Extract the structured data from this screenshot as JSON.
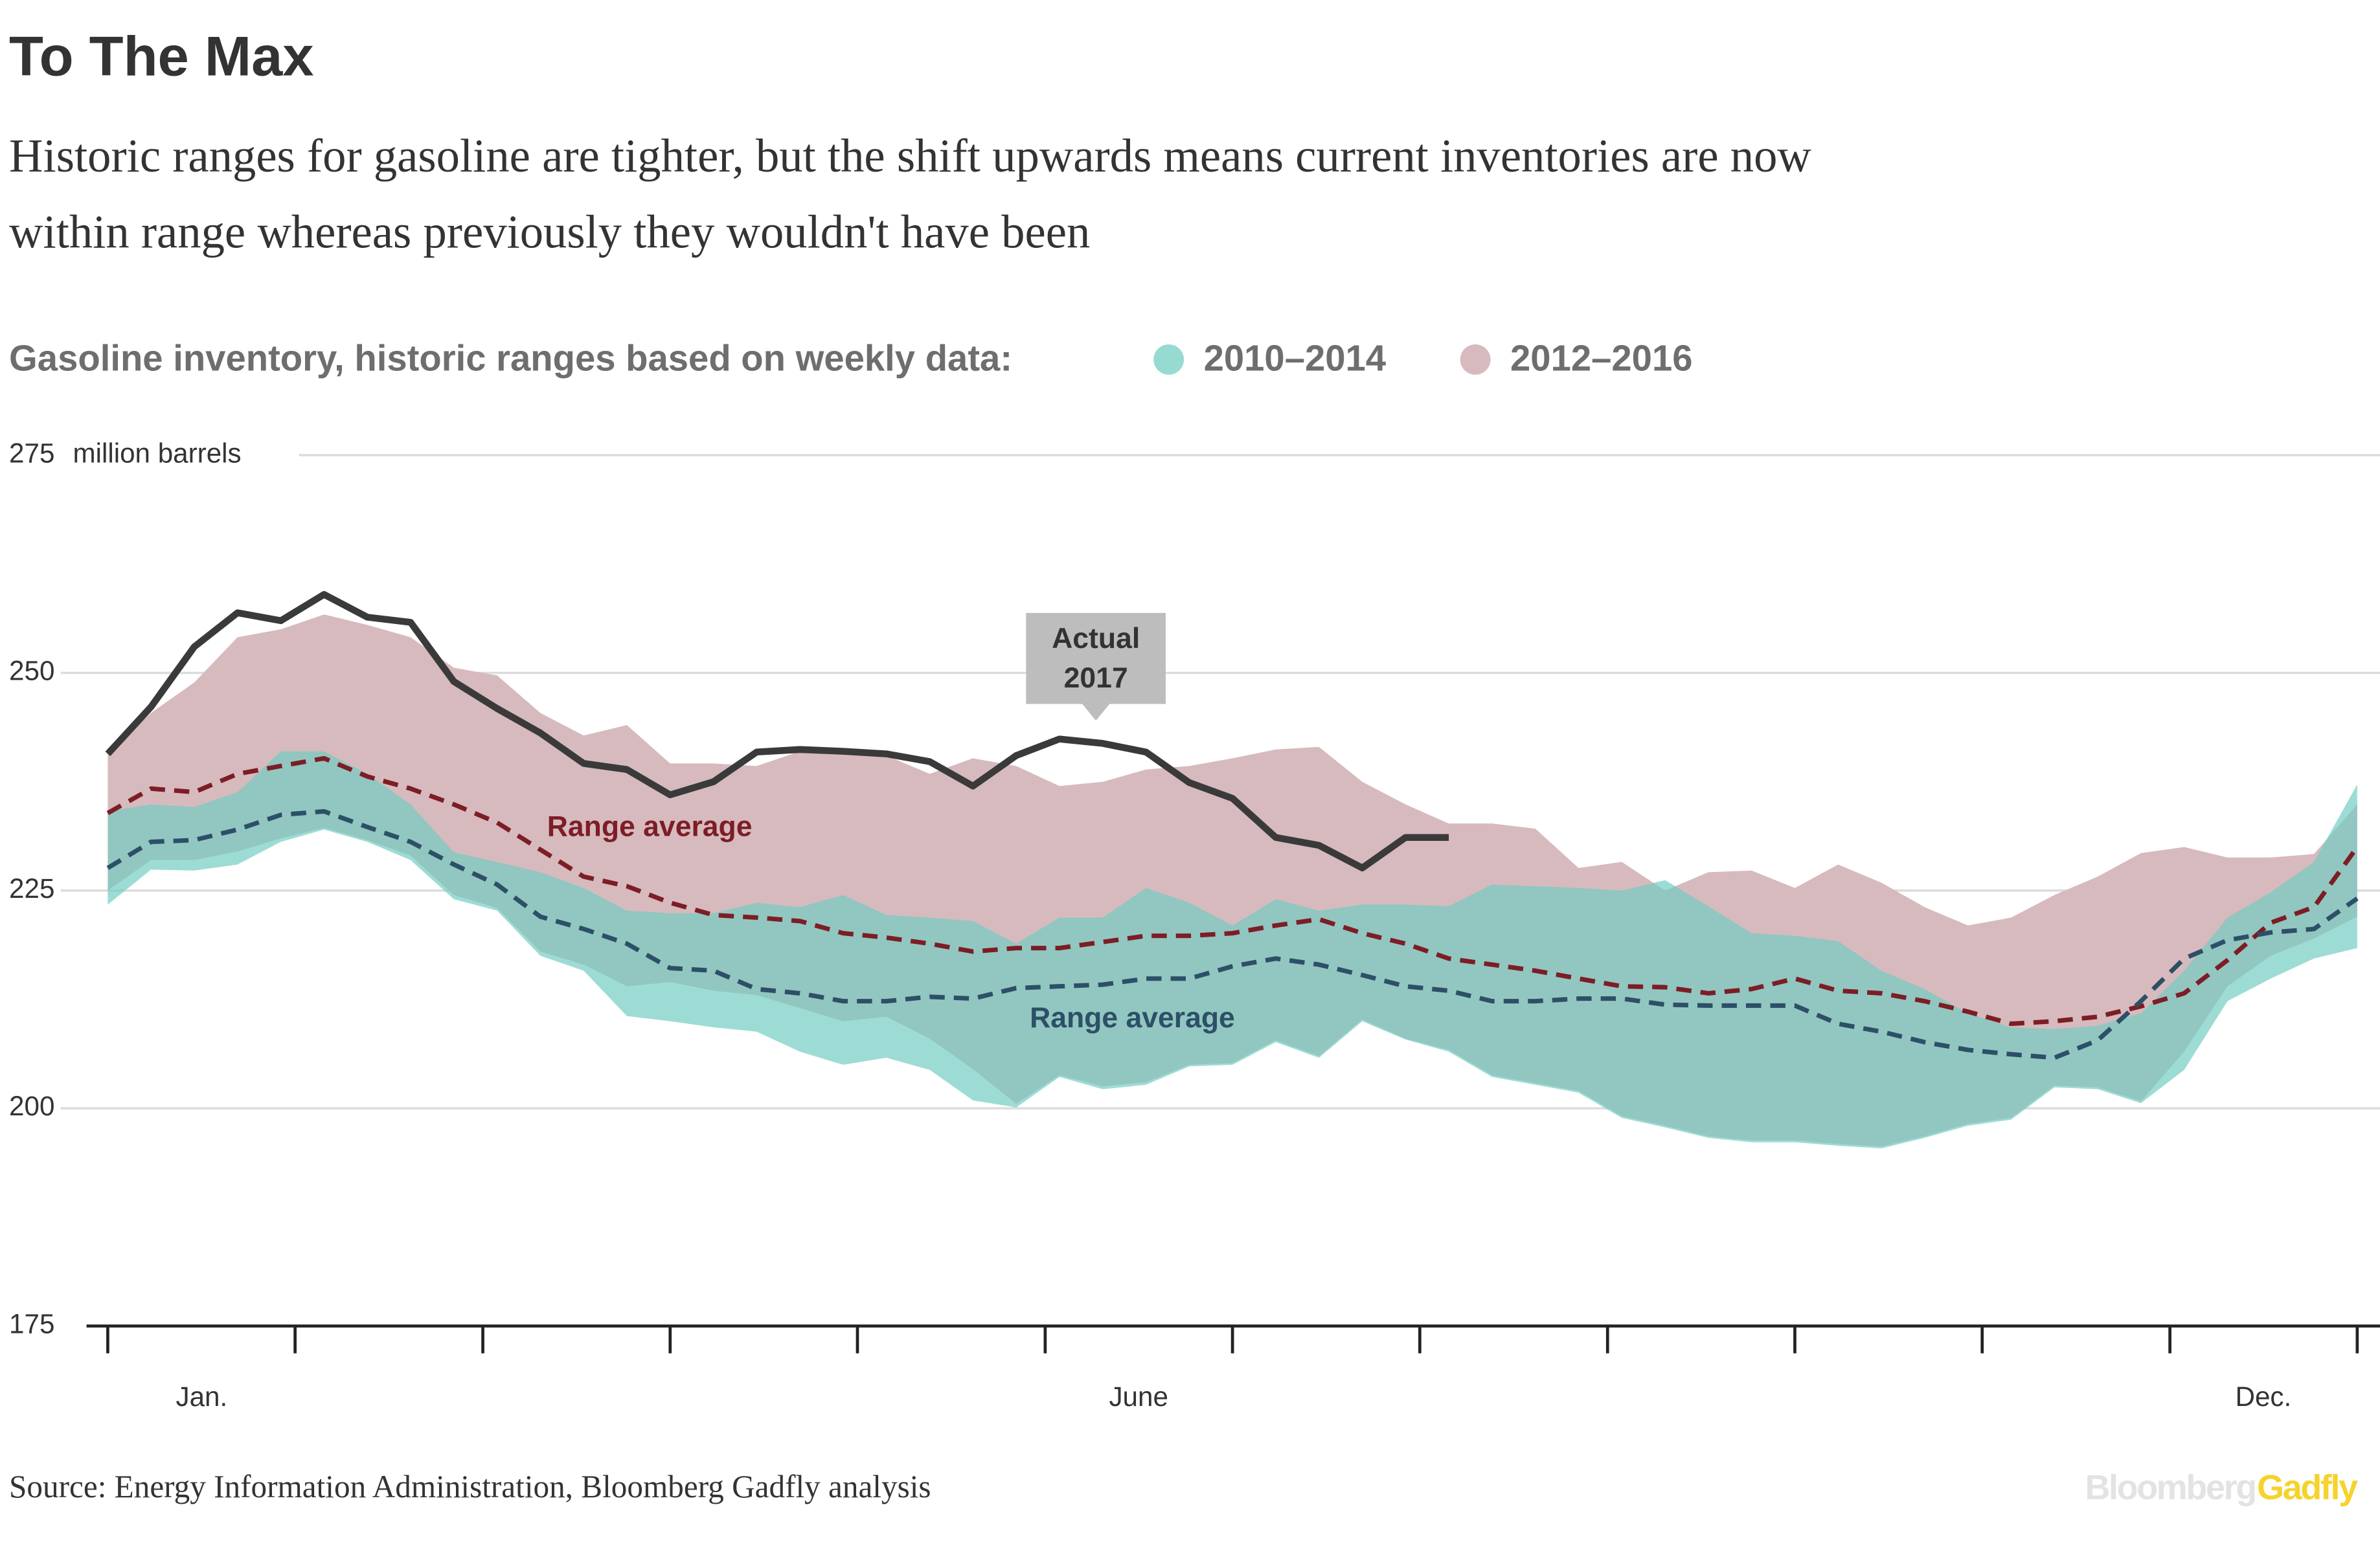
{
  "chart_data": {
    "type": "range-line",
    "title": "To The Max",
    "subtitle": [
      "Historic ranges for gasoline are tighter, but the shift upwards means current inventories are now",
      "within range whereas previously they wouldn't have been"
    ],
    "legend_title": "Gasoline inventory, historic ranges based on weekly data:",
    "y_unit": "million barrels",
    "source": "Source: Energy Information Administration, Bloomberg Gadfly analysis",
    "logo": [
      "Bloomberg",
      "Gadfly"
    ],
    "x": [
      0,
      1,
      2,
      3,
      4,
      5,
      6,
      7,
      8,
      9,
      10,
      11,
      12,
      13,
      14,
      15,
      16,
      17,
      18,
      19,
      20,
      21,
      22,
      23,
      24,
      25,
      26,
      27,
      28,
      29,
      30,
      31,
      32,
      33,
      34,
      35,
      36,
      37,
      38,
      39,
      40,
      41,
      42,
      43,
      44,
      45,
      46,
      47,
      48,
      49,
      50,
      51,
      52
    ],
    "xlim": [
      0,
      52
    ],
    "xticks": [
      0,
      4.33,
      8.67,
      13,
      17.33,
      21.67,
      26,
      30.33,
      34.67,
      39,
      43.33,
      47.67,
      52
    ],
    "xlabels": [
      {
        "value": 2.17,
        "label": "Jan."
      },
      {
        "value": 23.83,
        "label": "June"
      },
      {
        "value": 49.83,
        "label": "Dec."
      }
    ],
    "ylim": [
      175,
      275
    ],
    "yticks": [
      175,
      200,
      225,
      250,
      275
    ],
    "grid": true,
    "bands": [
      {
        "name": "2012–2016",
        "color": "#d7babd",
        "upper": [
          240.7,
          245.4,
          248.9,
          254.1,
          255.0,
          256.7,
          255.5,
          254.1,
          250.6,
          249.7,
          245.4,
          242.8,
          244.0,
          239.6,
          239.6,
          239.3,
          241.0,
          240.7,
          240.5,
          238.4,
          240.2,
          239.3,
          237.0,
          237.5,
          238.9,
          239.3,
          240.2,
          241.2,
          241.5,
          237.5,
          234.9,
          232.7,
          232.7,
          232.1,
          227.6,
          228.3,
          225.0,
          227.1,
          227.3,
          225.3,
          228.0,
          225.9,
          223.1,
          221.0,
          221.9,
          224.5,
          226.6,
          229.3,
          230.0,
          228.8,
          228.8,
          229.2,
          234.9
        ],
        "lower": [
          225.0,
          228.5,
          228.5,
          229.5,
          231.0,
          232.2,
          230.8,
          229.0,
          224.5,
          223.0,
          218.0,
          216.5,
          214.0,
          214.5,
          213.5,
          213.0,
          211.5,
          210.0,
          210.5,
          208.0,
          204.5,
          200.5,
          203.8,
          202.5,
          203.0,
          205.0,
          205.2,
          207.8,
          206.0,
          210.2,
          208.0,
          206.7,
          203.8,
          202.9,
          202.0,
          199.1,
          198.0,
          196.8,
          196.3,
          196.3,
          195.9,
          195.6,
          196.8,
          198.2,
          198.9,
          202.6,
          202.4,
          200.8,
          206.5,
          214.0,
          217.5,
          219.5,
          222.0
        ]
      },
      {
        "name": "2010–2014",
        "color": "#74cdc2",
        "upper": [
          234.1,
          234.9,
          234.6,
          236.3,
          241.0,
          241.0,
          238.4,
          234.9,
          229.4,
          228.3,
          227.1,
          225.3,
          222.7,
          222.4,
          222.4,
          223.6,
          223.1,
          224.5,
          222.2,
          221.9,
          221.5,
          218.9,
          221.9,
          221.9,
          225.3,
          223.6,
          221.0,
          224.0,
          222.7,
          223.4,
          223.4,
          223.2,
          225.7,
          225.5,
          225.3,
          225.0,
          226.2,
          223.2,
          220.1,
          219.8,
          219.2,
          215.8,
          213.7,
          210.9,
          209.3,
          209.1,
          209.5,
          210.9,
          215.8,
          221.9,
          224.8,
          228.3,
          237.2
        ],
        "lower": [
          223.4,
          227.4,
          227.3,
          228.0,
          230.6,
          232.0,
          230.6,
          228.5,
          224.0,
          222.7,
          217.5,
          215.8,
          210.6,
          210.0,
          209.3,
          208.8,
          206.5,
          205.0,
          205.8,
          204.4,
          200.9,
          200.1,
          203.6,
          202.2,
          202.7,
          204.8,
          205.0,
          207.6,
          205.8,
          210.0,
          207.9,
          206.5,
          203.6,
          202.7,
          201.8,
          198.9,
          197.8,
          196.6,
          196.1,
          196.1,
          195.7,
          195.4,
          196.6,
          198.0,
          198.7,
          202.4,
          202.2,
          200.6,
          204.4,
          212.3,
          214.9,
          217.2,
          218.4
        ]
      }
    ],
    "series": [
      {
        "label": "Range average",
        "color": "#7d1d26",
        "dashed": true,
        "values": [
          233.9,
          236.7,
          236.3,
          238.4,
          239.3,
          240.2,
          238.1,
          236.7,
          234.9,
          232.8,
          229.7,
          226.6,
          225.5,
          223.6,
          222.2,
          221.9,
          221.5,
          220.1,
          219.6,
          218.9,
          218.0,
          218.4,
          218.4,
          219.1,
          219.8,
          219.8,
          220.1,
          221.0,
          221.7,
          220.1,
          218.9,
          217.2,
          216.5,
          215.8,
          214.9,
          214.0,
          213.9,
          213.2,
          213.7,
          214.9,
          213.5,
          213.2,
          212.3,
          211.1,
          209.7,
          210.0,
          210.5,
          211.7,
          213.2,
          217.0,
          221.3,
          223.1,
          230.0
        ]
      },
      {
        "label": "Range average",
        "color": "#2d4f67",
        "dashed": true,
        "values": [
          227.6,
          230.6,
          230.8,
          232.0,
          233.7,
          234.1,
          232.3,
          230.6,
          228.0,
          225.7,
          222.0,
          220.6,
          218.9,
          216.1,
          215.8,
          213.7,
          213.2,
          212.3,
          212.3,
          212.8,
          212.6,
          213.8,
          214.0,
          214.2,
          214.9,
          214.9,
          216.3,
          217.2,
          216.5,
          215.3,
          214.0,
          213.5,
          212.3,
          212.3,
          212.6,
          212.6,
          211.9,
          211.8,
          211.8,
          211.8,
          209.7,
          208.8,
          207.6,
          206.7,
          206.2,
          205.8,
          207.8,
          212.3,
          217.2,
          219.3,
          220.2,
          220.6,
          224.1
        ]
      },
      {
        "label": [
          "Actual",
          "2017"
        ],
        "color": "#3a3a3a",
        "dashed": false,
        "values": [
          240.7,
          246.1,
          253.0,
          256.9,
          256.0,
          259.0,
          256.4,
          255.8,
          249.0,
          245.9,
          243.1,
          239.6,
          238.9,
          236.0,
          237.5,
          240.9,
          241.2,
          241.0,
          240.7,
          239.8,
          237.0,
          240.5,
          242.4,
          241.9,
          240.9,
          237.4,
          235.6,
          231.1,
          230.2,
          227.6,
          231.1,
          231.1,
          null,
          null,
          null,
          null,
          null,
          null,
          null,
          null,
          null,
          null,
          null,
          null,
          null,
          null,
          null,
          null,
          null,
          null,
          null,
          null,
          null
        ]
      }
    ]
  }
}
